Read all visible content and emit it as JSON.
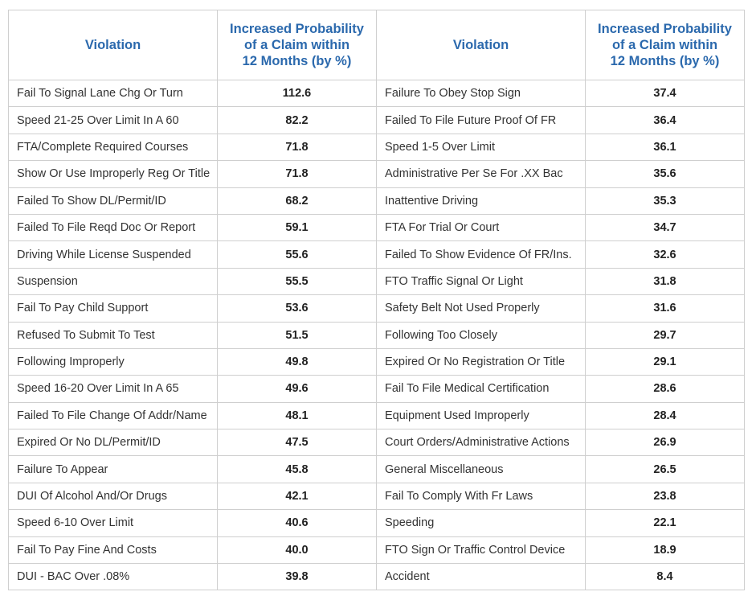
{
  "headers": {
    "violation": "Violation",
    "probability_lines": [
      "Increased Probability",
      "of a Claim within",
      "12 Months (by %)"
    ]
  },
  "left_rows": [
    {
      "violation": "Fail To Signal Lane Chg Or Turn",
      "value": "112.6"
    },
    {
      "violation": "Speed 21-25 Over Limit In A 60",
      "value": "82.2"
    },
    {
      "violation": "FTA/Complete Required Courses",
      "value": "71.8"
    },
    {
      "violation": "Show Or Use Improperly Reg Or Title",
      "value": "71.8"
    },
    {
      "violation": "Failed To Show DL/Permit/ID",
      "value": "68.2"
    },
    {
      "violation": "Failed To File Reqd Doc Or Report",
      "value": "59.1"
    },
    {
      "violation": "Driving While License Suspended",
      "value": "55.6"
    },
    {
      "violation": "Suspension",
      "value": "55.5"
    },
    {
      "violation": "Fail To Pay Child Support",
      "value": "53.6"
    },
    {
      "violation": "Refused To Submit To Test",
      "value": "51.5"
    },
    {
      "violation": "Following Improperly",
      "value": "49.8"
    },
    {
      "violation": "Speed 16-20 Over Limit In A 65",
      "value": "49.6"
    },
    {
      "violation": "Failed To File Change Of Addr/Name",
      "value": "48.1"
    },
    {
      "violation": "Expired Or No DL/Permit/ID",
      "value": "47.5"
    },
    {
      "violation": "Failure To Appear",
      "value": "45.8"
    },
    {
      "violation": "DUI Of Alcohol And/Or Drugs",
      "value": "42.1"
    },
    {
      "violation": "Speed 6-10 Over Limit",
      "value": "40.6"
    },
    {
      "violation": "Fail To Pay Fine And Costs",
      "value": "40.0"
    },
    {
      "violation": "DUI - BAC Over .08%",
      "value": "39.8"
    }
  ],
  "right_rows": [
    {
      "violation": "Failure To Obey Stop Sign",
      "value": "37.4"
    },
    {
      "violation": "Failed To File Future Proof Of FR",
      "value": "36.4"
    },
    {
      "violation": "Speed 1-5 Over Limit",
      "value": "36.1"
    },
    {
      "violation": "Administrative Per Se For .XX Bac",
      "value": "35.6"
    },
    {
      "violation": "Inattentive Driving",
      "value": "35.3"
    },
    {
      "violation": "FTA For Trial Or Court",
      "value": "34.7"
    },
    {
      "violation": "Failed To Show Evidence Of FR/Ins.",
      "value": "32.6"
    },
    {
      "violation": "FTO Traffic Signal Or Light",
      "value": "31.8"
    },
    {
      "violation": "Safety Belt Not Used Properly",
      "value": "31.6"
    },
    {
      "violation": "Following Too Closely",
      "value": "29.7"
    },
    {
      "violation": "Expired Or No Registration Or Title",
      "value": "29.1"
    },
    {
      "violation": "Fail To File Medical Certification",
      "value": "28.6"
    },
    {
      "violation": "Equipment Used Improperly",
      "value": "28.4"
    },
    {
      "violation": "Court Orders/Administrative Actions",
      "value": "26.9"
    },
    {
      "violation": "General Miscellaneous",
      "value": "26.5"
    },
    {
      "violation": "Fail To Comply With Fr Laws",
      "value": "23.8"
    },
    {
      "violation": "Speeding",
      "value": "22.1"
    },
    {
      "violation": "FTO Sign Or Traffic Control Device",
      "value": "18.9"
    },
    {
      "violation": "Accident",
      "value": "8.4"
    }
  ],
  "colors": {
    "header_text": "#2b69ad",
    "border": "#cfcfcf",
    "body_text": "#333333"
  }
}
